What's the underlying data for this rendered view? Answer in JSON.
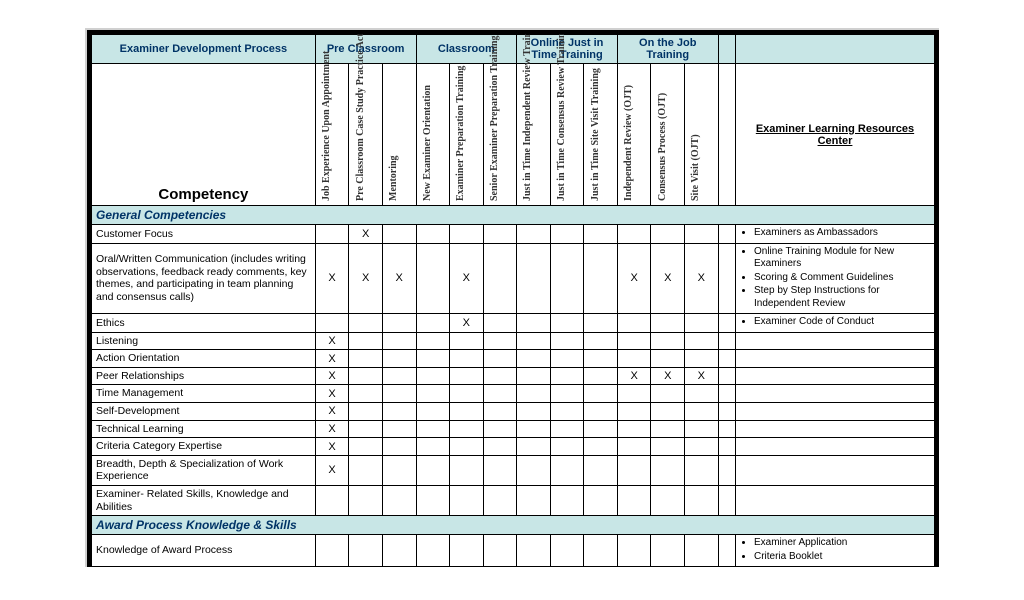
{
  "colors": {
    "header_bg": "#c8e6e6",
    "border": "#000000",
    "text": "#000000",
    "header_text": "#003366",
    "page_bg": "#ffffff"
  },
  "header": {
    "process_title": "Examiner Development Process",
    "competency_title": "Competency",
    "resources_title": "Examiner Learning Resources Center",
    "groups": [
      {
        "label": "Pre Classroom",
        "span": 3
      },
      {
        "label": "Classroom",
        "span": 3
      },
      {
        "label": "Online Just in Time Training",
        "span": 3
      },
      {
        "label": "On the Job Training",
        "span": 3
      }
    ],
    "columns": [
      "Job Experience Upon Appointment",
      "Pre Classroom Case Study Practice Activity",
      "Mentoring",
      "New Examiner Orientation",
      "Examiner Preparation Training",
      "Senior Examiner Preparation Training",
      "Just in Time Independent Review Training",
      "Just in Time Consensus Review Training",
      "Just in Time Site Visit Training",
      "Independent Review (OJT)",
      "Consensus Process (OJT)",
      "Site Visit (OJT)"
    ]
  },
  "sections": [
    {
      "title": "General Competencies",
      "rows": [
        {
          "label": "Customer Focus",
          "marks": [
            0,
            1,
            0,
            0,
            0,
            0,
            0,
            0,
            0,
            0,
            0,
            0
          ],
          "resources": [
            "Examiners as Ambassadors"
          ]
        },
        {
          "label": "Oral/Written Communication (includes writing observations, feedback ready comments, key themes, and participating in team planning and consensus calls)",
          "marks": [
            1,
            1,
            1,
            0,
            1,
            0,
            0,
            0,
            0,
            1,
            1,
            1
          ],
          "resources": [
            "Online Training Module for New Examiners",
            "Scoring & Comment Guidelines",
            "Step by Step Instructions for Independent Review"
          ]
        },
        {
          "label": "Ethics",
          "marks": [
            0,
            0,
            0,
            0,
            1,
            0,
            0,
            0,
            0,
            0,
            0,
            0
          ],
          "resources": [
            "Examiner Code of Conduct"
          ]
        },
        {
          "label": "Listening",
          "marks": [
            1,
            0,
            0,
            0,
            0,
            0,
            0,
            0,
            0,
            0,
            0,
            0
          ],
          "resources": []
        },
        {
          "label": "Action Orientation",
          "marks": [
            1,
            0,
            0,
            0,
            0,
            0,
            0,
            0,
            0,
            0,
            0,
            0
          ],
          "resources": []
        },
        {
          "label": "Peer Relationships",
          "marks": [
            1,
            0,
            0,
            0,
            0,
            0,
            0,
            0,
            0,
            1,
            1,
            1
          ],
          "resources": []
        },
        {
          "label": "Time Management",
          "marks": [
            1,
            0,
            0,
            0,
            0,
            0,
            0,
            0,
            0,
            0,
            0,
            0
          ],
          "resources": []
        },
        {
          "label": "Self-Development",
          "marks": [
            1,
            0,
            0,
            0,
            0,
            0,
            0,
            0,
            0,
            0,
            0,
            0
          ],
          "resources": []
        },
        {
          "label": "Technical Learning",
          "marks": [
            1,
            0,
            0,
            0,
            0,
            0,
            0,
            0,
            0,
            0,
            0,
            0
          ],
          "resources": []
        },
        {
          "label": "Criteria Category Expertise",
          "marks": [
            1,
            0,
            0,
            0,
            0,
            0,
            0,
            0,
            0,
            0,
            0,
            0
          ],
          "resources": []
        },
        {
          "label": "Breadth, Depth & Specialization of Work Experience",
          "marks": [
            1,
            0,
            0,
            0,
            0,
            0,
            0,
            0,
            0,
            0,
            0,
            0
          ],
          "resources": []
        },
        {
          "label": "Examiner- Related Skills, Knowledge and Abilities",
          "marks": [
            0,
            0,
            0,
            0,
            0,
            0,
            0,
            0,
            0,
            0,
            0,
            0
          ],
          "resources": []
        }
      ]
    },
    {
      "title": "Award Process Knowledge & Skills",
      "rows": [
        {
          "label": "Knowledge of Award Process",
          "marks": [
            0,
            0,
            0,
            0,
            0,
            0,
            0,
            0,
            0,
            0,
            0,
            0
          ],
          "resources": [
            "Examiner Application",
            "Criteria Booklet"
          ]
        }
      ]
    }
  ]
}
